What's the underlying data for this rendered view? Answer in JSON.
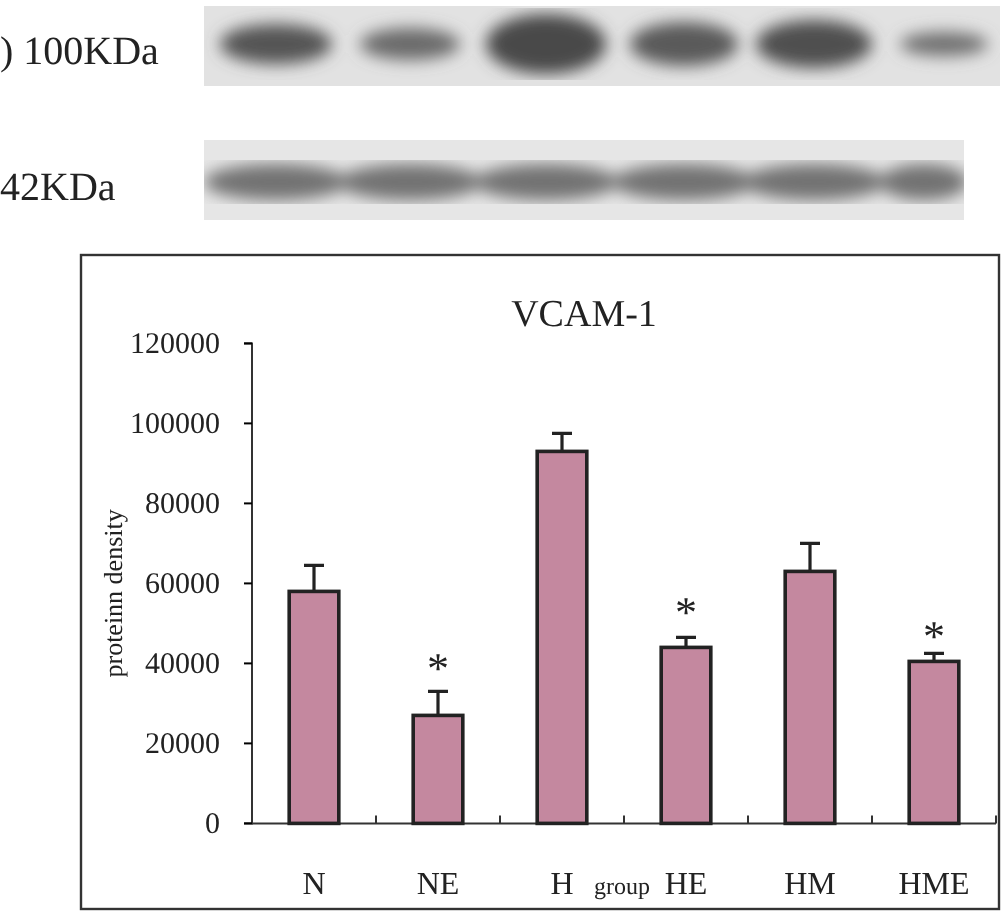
{
  "chart_data": {
    "type": "bar",
    "title": "VCAM-1",
    "ylabel": "proteinn density",
    "xlabel": "group",
    "categories": [
      "N",
      "NE",
      "H",
      "HE",
      "HM",
      "HME"
    ],
    "values": [
      58000,
      27000,
      93000,
      44000,
      63000,
      40500
    ],
    "errors": [
      [
        58000,
        64500
      ],
      [
        27000,
        33000
      ],
      [
        93000,
        97500
      ],
      [
        44000,
        46500
      ],
      [
        63000,
        70000
      ],
      [
        40500,
        42500
      ]
    ],
    "color": "#c4889f",
    "ylim": [
      0,
      120000
    ],
    "yticks": [
      0,
      20000,
      40000,
      60000,
      80000,
      100000,
      120000
    ],
    "annotations": [
      ") 100KDa",
      "42KDa",
      "*",
      "*",
      "*"
    ]
  }
}
